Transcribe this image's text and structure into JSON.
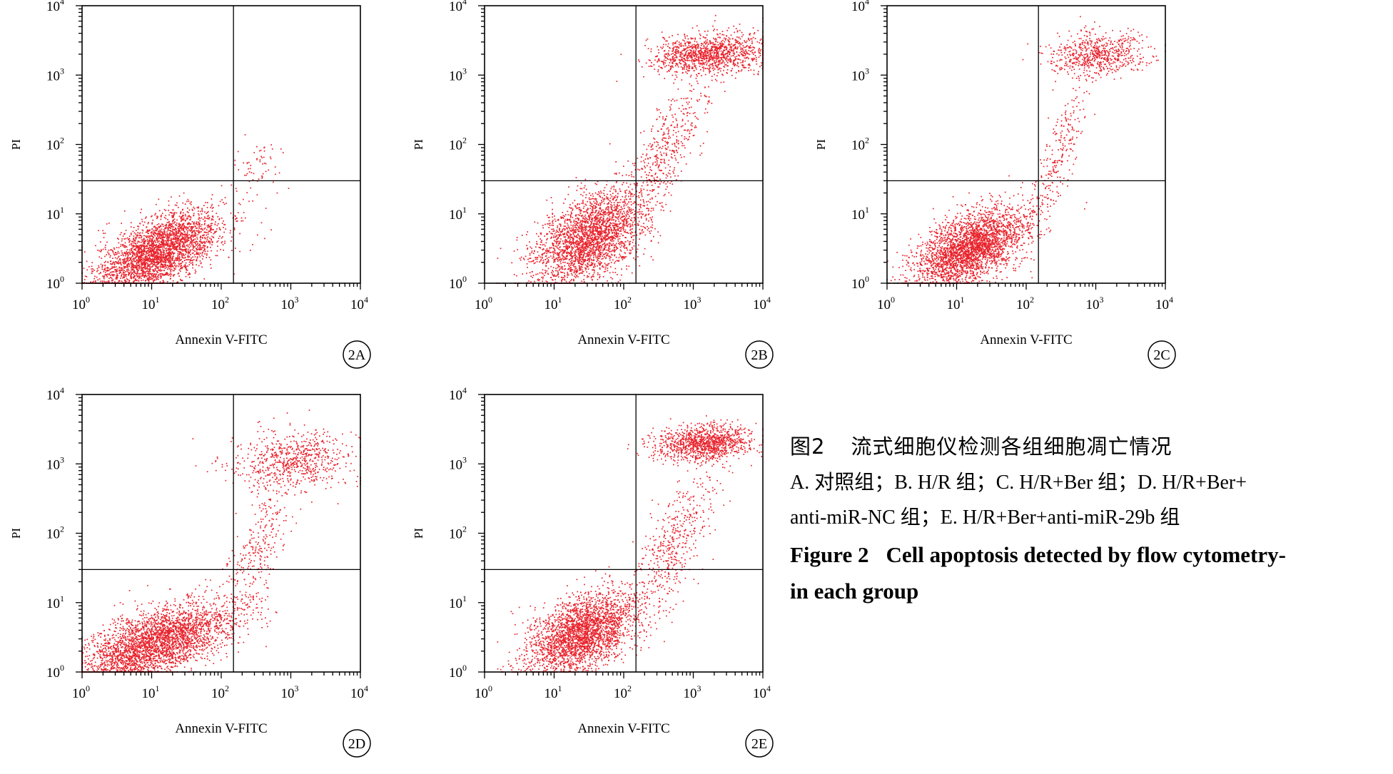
{
  "panels": [
    {
      "id": "2A",
      "badge": "2A",
      "xlabel": "Annexin V-FITC",
      "ylabel": "PI"
    },
    {
      "id": "2B",
      "badge": "2B",
      "xlabel": "Annexin V-FITC",
      "ylabel": "PI"
    },
    {
      "id": "2C",
      "badge": "2C",
      "xlabel": "Annexin V-FITC",
      "ylabel": "PI"
    },
    {
      "id": "2D",
      "badge": "2D",
      "xlabel": "Annexin V-FITC",
      "ylabel": "PI"
    },
    {
      "id": "2E",
      "badge": "2E",
      "xlabel": "Annexin V-FITC",
      "ylabel": "PI"
    }
  ],
  "tick_base": "10",
  "tick_exponents": [
    "0",
    "1",
    "2",
    "3",
    "4"
  ],
  "caption": {
    "title_cn": "图2",
    "title_cn_num": "",
    "title_cn_text": "流式细胞仪检测各组细胞凋亡情况",
    "line1": "A. 对照组；B. H/R 组；C. H/R+Ber 组；D. H/R+Ber+",
    "line2": "anti-miR-NC 组；E. H/R+Ber+anti-miR-29b 组",
    "en_fig": "Figure 2",
    "en_line1": "Cell apoptosis detected by flow cytometry-",
    "en_line2": "in each group"
  },
  "colors": {
    "dots": "#e8222b",
    "axes": "#000000"
  },
  "chart_data": [
    {
      "type": "scatter",
      "panel": "2A",
      "xscale": "log",
      "yscale": "log",
      "xlim": [
        1,
        10000
      ],
      "ylim": [
        1,
        10000
      ],
      "gate_x": 150,
      "gate_y": 30,
      "populations": [
        {
          "cx": 1.1,
          "cy": 0.45,
          "sx": 0.45,
          "sy": 0.3,
          "rho": 0.6,
          "n": 3000
        },
        {
          "cx": 2.55,
          "cy": 1.7,
          "sx": 0.15,
          "sy": 0.2,
          "rho": 0.2,
          "n": 60
        }
      ]
    },
    {
      "type": "scatter",
      "panel": "2B",
      "xscale": "log",
      "yscale": "log",
      "xlim": [
        1,
        10000
      ],
      "ylim": [
        1,
        10000
      ],
      "gate_x": 150,
      "gate_y": 30,
      "populations": [
        {
          "cx": 1.5,
          "cy": 0.65,
          "sx": 0.4,
          "sy": 0.35,
          "rho": 0.5,
          "n": 2600
        },
        {
          "cx": 3.25,
          "cy": 3.3,
          "sx": 0.42,
          "sy": 0.14,
          "rho": 0.1,
          "n": 1200
        },
        {
          "cx": 2.6,
          "cy": 1.9,
          "sx": 0.3,
          "sy": 0.55,
          "rho": 0.75,
          "n": 450
        }
      ]
    },
    {
      "type": "scatter",
      "panel": "2C",
      "xscale": "log",
      "yscale": "log",
      "xlim": [
        1,
        10000
      ],
      "ylim": [
        1,
        10000
      ],
      "gate_x": 150,
      "gate_y": 30,
      "populations": [
        {
          "cx": 1.2,
          "cy": 0.5,
          "sx": 0.4,
          "sy": 0.3,
          "rho": 0.55,
          "n": 2900
        },
        {
          "cx": 3.05,
          "cy": 3.3,
          "sx": 0.35,
          "sy": 0.16,
          "rho": 0.1,
          "n": 650
        },
        {
          "cx": 2.45,
          "cy": 1.8,
          "sx": 0.22,
          "sy": 0.55,
          "rho": 0.8,
          "n": 260
        }
      ]
    },
    {
      "type": "scatter",
      "panel": "2D",
      "xscale": "log",
      "yscale": "log",
      "xlim": [
        1,
        10000
      ],
      "ylim": [
        1,
        10000
      ],
      "gate_x": 150,
      "gate_y": 30,
      "populations": [
        {
          "cx": 1.05,
          "cy": 0.4,
          "sx": 0.55,
          "sy": 0.3,
          "rho": 0.6,
          "n": 3200
        },
        {
          "cx": 3.05,
          "cy": 3.05,
          "sx": 0.45,
          "sy": 0.22,
          "rho": 0.1,
          "n": 700
        },
        {
          "cx": 2.5,
          "cy": 1.7,
          "sx": 0.25,
          "sy": 0.55,
          "rho": 0.7,
          "n": 300
        }
      ]
    },
    {
      "type": "scatter",
      "panel": "2E",
      "xscale": "log",
      "yscale": "log",
      "xlim": [
        1,
        10000
      ],
      "ylim": [
        1,
        10000
      ],
      "gate_x": 150,
      "gate_y": 30,
      "populations": [
        {
          "cx": 1.4,
          "cy": 0.55,
          "sx": 0.4,
          "sy": 0.3,
          "rho": 0.5,
          "n": 2700
        },
        {
          "cx": 3.15,
          "cy": 3.3,
          "sx": 0.35,
          "sy": 0.13,
          "rho": 0.1,
          "n": 1100
        },
        {
          "cx": 2.75,
          "cy": 1.9,
          "sx": 0.3,
          "sy": 0.55,
          "rho": 0.7,
          "n": 450
        }
      ]
    }
  ]
}
